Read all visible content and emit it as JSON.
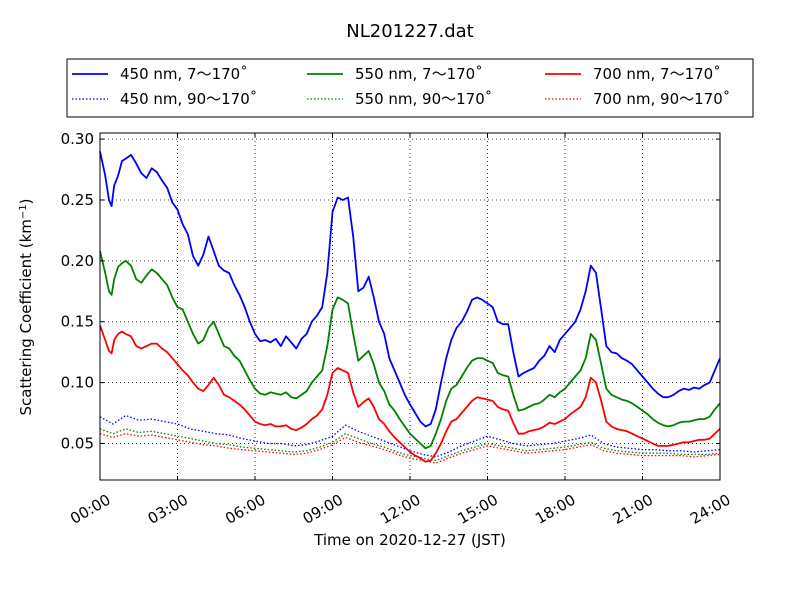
{
  "chart_data": {
    "type": "line",
    "title": "NL201227.dat",
    "xlabel": "Time on 2020-12-27 (JST)",
    "ylabel": "Scattering Coefficient (km",
    "ylabel_sup": "−1",
    "ylabel_close": ")",
    "x_unit": "hours",
    "xlim": [
      0,
      24
    ],
    "ylim": [
      0.02,
      0.305
    ],
    "grid": true,
    "grid_style": "dotted",
    "legend_position": "top, above plot",
    "x_ticks": [
      {
        "value": 0,
        "label": "00:00"
      },
      {
        "value": 3,
        "label": "03:00"
      },
      {
        "value": 6,
        "label": "06:00"
      },
      {
        "value": 9,
        "label": "09:00"
      },
      {
        "value": 12,
        "label": "12:00"
      },
      {
        "value": 15,
        "label": "15:00"
      },
      {
        "value": 18,
        "label": "18:00"
      },
      {
        "value": 21,
        "label": "21:00"
      },
      {
        "value": 24,
        "label": "24:00"
      }
    ],
    "y_ticks": [
      {
        "value": 0.05,
        "label": "0.05"
      },
      {
        "value": 0.1,
        "label": "0.10"
      },
      {
        "value": 0.15,
        "label": "0.15"
      },
      {
        "value": 0.2,
        "label": "0.20"
      },
      {
        "value": 0.25,
        "label": "0.25"
      },
      {
        "value": 0.3,
        "label": "0.30"
      }
    ],
    "series": [
      {
        "name": "450 nm, 7～170˚",
        "color": "#0000ff",
        "style": "solid",
        "x": [
          0,
          0.2,
          0.35,
          0.45,
          0.55,
          0.7,
          0.85,
          1.0,
          1.2,
          1.4,
          1.6,
          1.8,
          2.0,
          2.2,
          2.4,
          2.6,
          2.8,
          3.0,
          3.2,
          3.4,
          3.6,
          3.8,
          4.0,
          4.2,
          4.4,
          4.6,
          4.8,
          5.0,
          5.2,
          5.4,
          5.6,
          5.8,
          6.0,
          6.2,
          6.4,
          6.6,
          6.8,
          7.0,
          7.2,
          7.4,
          7.6,
          7.8,
          8.0,
          8.2,
          8.4,
          8.6,
          8.8,
          9.0,
          9.2,
          9.4,
          9.6,
          9.8,
          10.0,
          10.2,
          10.4,
          10.6,
          10.8,
          11.0,
          11.2,
          11.4,
          11.6,
          11.8,
          12.0,
          12.2,
          12.4,
          12.6,
          12.8,
          13.0,
          13.2,
          13.4,
          13.6,
          13.8,
          14.0,
          14.2,
          14.4,
          14.6,
          14.8,
          15.0,
          15.2,
          15.4,
          15.6,
          15.8,
          16.0,
          16.2,
          16.4,
          16.6,
          16.8,
          17.0,
          17.2,
          17.4,
          17.6,
          17.8,
          18.0,
          18.2,
          18.4,
          18.6,
          18.8,
          19.0,
          19.2,
          19.4,
          19.6,
          19.8,
          20.0,
          20.2,
          20.4,
          20.6,
          20.8,
          21.0,
          21.2,
          21.4,
          21.6,
          21.8,
          22.0,
          22.2,
          22.4,
          22.6,
          22.8,
          23.0,
          23.2,
          23.4,
          23.6,
          23.8,
          24.0
        ],
        "y": [
          0.29,
          0.27,
          0.25,
          0.245,
          0.262,
          0.27,
          0.282,
          0.284,
          0.287,
          0.28,
          0.272,
          0.268,
          0.276,
          0.273,
          0.266,
          0.26,
          0.248,
          0.242,
          0.23,
          0.222,
          0.204,
          0.196,
          0.205,
          0.22,
          0.208,
          0.196,
          0.192,
          0.19,
          0.18,
          0.172,
          0.162,
          0.15,
          0.14,
          0.134,
          0.135,
          0.133,
          0.136,
          0.13,
          0.138,
          0.133,
          0.128,
          0.136,
          0.14,
          0.15,
          0.155,
          0.162,
          0.19,
          0.24,
          0.252,
          0.25,
          0.252,
          0.22,
          0.175,
          0.178,
          0.187,
          0.17,
          0.15,
          0.14,
          0.12,
          0.11,
          0.1,
          0.09,
          0.082,
          0.075,
          0.068,
          0.064,
          0.066,
          0.078,
          0.1,
          0.12,
          0.135,
          0.145,
          0.15,
          0.158,
          0.168,
          0.17,
          0.168,
          0.165,
          0.162,
          0.15,
          0.148,
          0.148,
          0.125,
          0.105,
          0.108,
          0.11,
          0.112,
          0.118,
          0.122,
          0.13,
          0.125,
          0.135,
          0.14,
          0.145,
          0.15,
          0.16,
          0.175,
          0.196,
          0.19,
          0.16,
          0.13,
          0.125,
          0.124,
          0.12,
          0.118,
          0.115,
          0.11,
          0.105,
          0.1,
          0.095,
          0.091,
          0.088,
          0.088,
          0.09,
          0.093,
          0.095,
          0.094,
          0.096,
          0.095,
          0.098,
          0.1,
          0.11,
          0.12
        ]
      },
      {
        "name": "550 nm, 7～170˚",
        "color": "#008000",
        "style": "solid",
        "x": [
          0,
          0.2,
          0.35,
          0.45,
          0.55,
          0.7,
          0.85,
          1.0,
          1.2,
          1.4,
          1.6,
          1.8,
          2.0,
          2.2,
          2.4,
          2.6,
          2.8,
          3.0,
          3.2,
          3.4,
          3.6,
          3.8,
          4.0,
          4.2,
          4.4,
          4.6,
          4.8,
          5.0,
          5.2,
          5.4,
          5.6,
          5.8,
          6.0,
          6.2,
          6.4,
          6.6,
          6.8,
          7.0,
          7.2,
          7.4,
          7.6,
          7.8,
          8.0,
          8.2,
          8.4,
          8.6,
          8.8,
          9.0,
          9.2,
          9.4,
          9.6,
          9.8,
          10.0,
          10.2,
          10.4,
          10.6,
          10.8,
          11.0,
          11.2,
          11.4,
          11.6,
          11.8,
          12.0,
          12.2,
          12.4,
          12.6,
          12.8,
          13.0,
          13.2,
          13.4,
          13.6,
          13.8,
          14.0,
          14.2,
          14.4,
          14.6,
          14.8,
          15.0,
          15.2,
          15.4,
          15.6,
          15.8,
          16.0,
          16.2,
          16.4,
          16.6,
          16.8,
          17.0,
          17.2,
          17.4,
          17.6,
          17.8,
          18.0,
          18.2,
          18.4,
          18.6,
          18.8,
          19.0,
          19.2,
          19.4,
          19.6,
          19.8,
          20.0,
          20.2,
          20.4,
          20.6,
          20.8,
          21.0,
          21.2,
          21.4,
          21.6,
          21.8,
          22.0,
          22.2,
          22.4,
          22.6,
          22.8,
          23.0,
          23.2,
          23.4,
          23.6,
          23.8,
          24.0
        ],
        "y": [
          0.208,
          0.19,
          0.175,
          0.172,
          0.185,
          0.195,
          0.198,
          0.2,
          0.196,
          0.185,
          0.182,
          0.188,
          0.193,
          0.19,
          0.185,
          0.18,
          0.17,
          0.162,
          0.16,
          0.15,
          0.14,
          0.132,
          0.135,
          0.145,
          0.15,
          0.14,
          0.13,
          0.128,
          0.122,
          0.118,
          0.11,
          0.102,
          0.095,
          0.091,
          0.09,
          0.092,
          0.091,
          0.09,
          0.092,
          0.088,
          0.087,
          0.09,
          0.093,
          0.1,
          0.105,
          0.11,
          0.13,
          0.16,
          0.17,
          0.168,
          0.165,
          0.14,
          0.118,
          0.122,
          0.126,
          0.115,
          0.1,
          0.093,
          0.082,
          0.077,
          0.07,
          0.064,
          0.058,
          0.054,
          0.05,
          0.046,
          0.048,
          0.058,
          0.07,
          0.085,
          0.095,
          0.098,
          0.105,
          0.112,
          0.118,
          0.12,
          0.12,
          0.118,
          0.116,
          0.108,
          0.106,
          0.105,
          0.09,
          0.077,
          0.078,
          0.08,
          0.082,
          0.083,
          0.086,
          0.09,
          0.088,
          0.092,
          0.095,
          0.1,
          0.105,
          0.11,
          0.12,
          0.14,
          0.135,
          0.115,
          0.095,
          0.09,
          0.088,
          0.086,
          0.085,
          0.083,
          0.08,
          0.077,
          0.074,
          0.07,
          0.067,
          0.065,
          0.064,
          0.065,
          0.067,
          0.068,
          0.068,
          0.069,
          0.07,
          0.07,
          0.072,
          0.078,
          0.083
        ]
      },
      {
        "name": "700 nm, 7～170˚",
        "color": "#ff0000",
        "style": "solid",
        "x": [
          0,
          0.2,
          0.35,
          0.45,
          0.55,
          0.7,
          0.85,
          1.0,
          1.2,
          1.4,
          1.6,
          1.8,
          2.0,
          2.2,
          2.4,
          2.6,
          2.8,
          3.0,
          3.2,
          3.4,
          3.6,
          3.8,
          4.0,
          4.2,
          4.4,
          4.6,
          4.8,
          5.0,
          5.2,
          5.4,
          5.6,
          5.8,
          6.0,
          6.2,
          6.4,
          6.6,
          6.8,
          7.0,
          7.2,
          7.4,
          7.6,
          7.8,
          8.0,
          8.2,
          8.4,
          8.6,
          8.8,
          9.0,
          9.2,
          9.4,
          9.6,
          9.8,
          10.0,
          10.2,
          10.4,
          10.6,
          10.8,
          11.0,
          11.2,
          11.4,
          11.6,
          11.8,
          12.0,
          12.2,
          12.4,
          12.6,
          12.8,
          13.0,
          13.2,
          13.4,
          13.6,
          13.8,
          14.0,
          14.2,
          14.4,
          14.6,
          14.8,
          15.0,
          15.2,
          15.4,
          15.6,
          15.8,
          16.0,
          16.2,
          16.4,
          16.6,
          16.8,
          17.0,
          17.2,
          17.4,
          17.6,
          17.8,
          18.0,
          18.2,
          18.4,
          18.6,
          18.8,
          19.0,
          19.2,
          19.4,
          19.6,
          19.8,
          20.0,
          20.2,
          20.4,
          20.6,
          20.8,
          21.0,
          21.2,
          21.4,
          21.6,
          21.8,
          22.0,
          22.2,
          22.4,
          22.6,
          22.8,
          23.0,
          23.2,
          23.4,
          23.6,
          23.8,
          24.0
        ],
        "y": [
          0.147,
          0.135,
          0.126,
          0.124,
          0.135,
          0.14,
          0.142,
          0.14,
          0.138,
          0.13,
          0.128,
          0.13,
          0.132,
          0.132,
          0.128,
          0.125,
          0.12,
          0.115,
          0.11,
          0.106,
          0.1,
          0.095,
          0.093,
          0.098,
          0.104,
          0.098,
          0.09,
          0.088,
          0.085,
          0.082,
          0.078,
          0.073,
          0.068,
          0.066,
          0.065,
          0.066,
          0.064,
          0.064,
          0.065,
          0.062,
          0.061,
          0.063,
          0.066,
          0.07,
          0.073,
          0.078,
          0.09,
          0.108,
          0.112,
          0.11,
          0.108,
          0.092,
          0.08,
          0.084,
          0.087,
          0.08,
          0.07,
          0.066,
          0.06,
          0.055,
          0.051,
          0.047,
          0.043,
          0.04,
          0.038,
          0.035,
          0.036,
          0.042,
          0.05,
          0.06,
          0.068,
          0.07,
          0.075,
          0.08,
          0.085,
          0.088,
          0.087,
          0.086,
          0.085,
          0.08,
          0.078,
          0.077,
          0.067,
          0.058,
          0.058,
          0.06,
          0.061,
          0.062,
          0.064,
          0.067,
          0.066,
          0.068,
          0.07,
          0.074,
          0.077,
          0.08,
          0.088,
          0.104,
          0.1,
          0.085,
          0.068,
          0.064,
          0.062,
          0.061,
          0.06,
          0.058,
          0.056,
          0.054,
          0.052,
          0.05,
          0.048,
          0.048,
          0.048,
          0.049,
          0.05,
          0.051,
          0.051,
          0.052,
          0.053,
          0.053,
          0.054,
          0.058,
          0.062
        ]
      },
      {
        "name": "450 nm, 90～170˚",
        "color": "#0000ff",
        "style": "dotted",
        "x": [
          0,
          0.5,
          1.0,
          1.5,
          2.0,
          2.5,
          3.0,
          3.5,
          4.0,
          4.5,
          5.0,
          5.5,
          6.0,
          6.5,
          7.0,
          7.5,
          8.0,
          8.5,
          9.0,
          9.5,
          10.0,
          10.5,
          11.0,
          11.5,
          12.0,
          12.5,
          13.0,
          13.5,
          14.0,
          14.5,
          15.0,
          15.5,
          16.0,
          16.5,
          17.0,
          17.5,
          18.0,
          18.5,
          19.0,
          19.5,
          20.0,
          20.5,
          21.0,
          21.5,
          22.0,
          22.5,
          23.0,
          23.5,
          24.0
        ],
        "y": [
          0.072,
          0.066,
          0.073,
          0.069,
          0.07,
          0.068,
          0.066,
          0.062,
          0.06,
          0.058,
          0.057,
          0.054,
          0.052,
          0.05,
          0.05,
          0.048,
          0.049,
          0.052,
          0.056,
          0.065,
          0.06,
          0.056,
          0.052,
          0.048,
          0.044,
          0.041,
          0.039,
          0.043,
          0.048,
          0.052,
          0.056,
          0.053,
          0.05,
          0.048,
          0.049,
          0.05,
          0.052,
          0.054,
          0.057,
          0.05,
          0.047,
          0.046,
          0.045,
          0.045,
          0.044,
          0.044,
          0.043,
          0.044,
          0.045
        ]
      },
      {
        "name": "550 nm, 90～170˚",
        "color": "#008000",
        "style": "dotted",
        "x": [
          0,
          0.5,
          1.0,
          1.5,
          2.0,
          2.5,
          3.0,
          3.5,
          4.0,
          4.5,
          5.0,
          5.5,
          6.0,
          6.5,
          7.0,
          7.5,
          8.0,
          8.5,
          9.0,
          9.5,
          10.0,
          10.5,
          11.0,
          11.5,
          12.0,
          12.5,
          13.0,
          13.5,
          14.0,
          14.5,
          15.0,
          15.5,
          16.0,
          16.5,
          17.0,
          17.5,
          18.0,
          18.5,
          19.0,
          19.5,
          20.0,
          20.5,
          21.0,
          21.5,
          22.0,
          22.5,
          23.0,
          23.5,
          24.0
        ],
        "y": [
          0.062,
          0.058,
          0.062,
          0.059,
          0.06,
          0.058,
          0.056,
          0.054,
          0.052,
          0.05,
          0.049,
          0.047,
          0.046,
          0.045,
          0.044,
          0.043,
          0.044,
          0.047,
          0.051,
          0.058,
          0.054,
          0.05,
          0.047,
          0.043,
          0.04,
          0.038,
          0.036,
          0.04,
          0.044,
          0.047,
          0.05,
          0.048,
          0.046,
          0.044,
          0.045,
          0.046,
          0.047,
          0.049,
          0.051,
          0.046,
          0.044,
          0.043,
          0.042,
          0.042,
          0.042,
          0.041,
          0.041,
          0.041,
          0.042
        ]
      },
      {
        "name": "700 nm, 90～170˚",
        "color": "#ff0000",
        "style": "dotted",
        "x": [
          0,
          0.5,
          1.0,
          1.5,
          2.0,
          2.5,
          3.0,
          3.5,
          4.0,
          4.5,
          5.0,
          5.5,
          6.0,
          6.5,
          7.0,
          7.5,
          8.0,
          8.5,
          9.0,
          9.5,
          10.0,
          10.5,
          11.0,
          11.5,
          12.0,
          12.5,
          13.0,
          13.5,
          14.0,
          14.5,
          15.0,
          15.5,
          16.0,
          16.5,
          17.0,
          17.5,
          18.0,
          18.5,
          19.0,
          19.5,
          20.0,
          20.5,
          21.0,
          21.5,
          22.0,
          22.5,
          23.0,
          23.5,
          24.0
        ],
        "y": [
          0.058,
          0.055,
          0.058,
          0.056,
          0.057,
          0.055,
          0.053,
          0.051,
          0.049,
          0.048,
          0.046,
          0.045,
          0.044,
          0.043,
          0.042,
          0.041,
          0.042,
          0.045,
          0.049,
          0.055,
          0.051,
          0.048,
          0.045,
          0.041,
          0.038,
          0.036,
          0.034,
          0.038,
          0.042,
          0.045,
          0.048,
          0.046,
          0.044,
          0.042,
          0.043,
          0.044,
          0.045,
          0.047,
          0.049,
          0.044,
          0.042,
          0.041,
          0.04,
          0.04,
          0.04,
          0.04,
          0.039,
          0.04,
          0.041
        ]
      }
    ]
  }
}
